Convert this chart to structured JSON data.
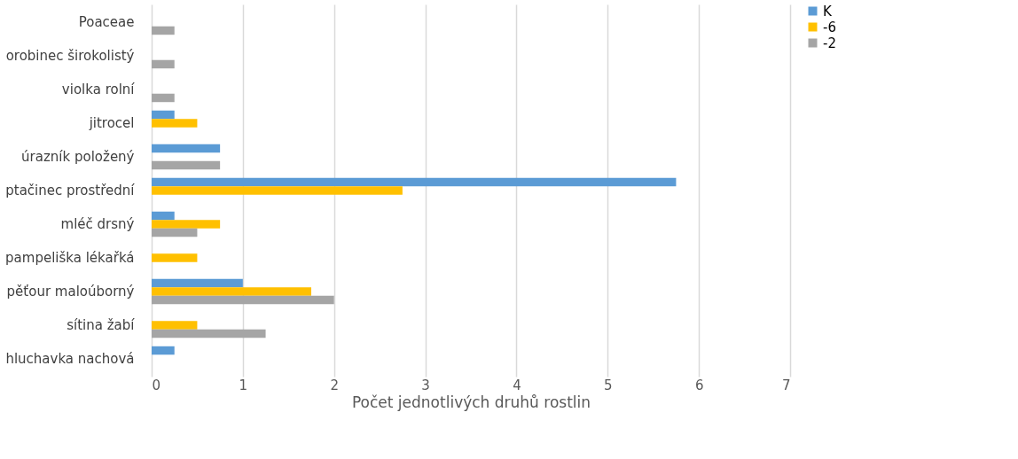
{
  "chart_data": {
    "type": "bar",
    "orientation": "horizontal",
    "xlabel": "Počet jednotlivých druhů rostlin",
    "categories": [
      "Poaceae",
      "orobinec širokolistý",
      "violka rolní",
      "jitrocel",
      "úrazník položený",
      "ptačinec prostřední",
      "mléč drsný",
      "pampeliška lékařká",
      "pěťour maloúborný",
      "sítina žabí",
      "hluchavka nachová"
    ],
    "series": [
      {
        "name": "K",
        "color": "#5b9bd5",
        "values": [
          null,
          null,
          null,
          0.25,
          0.75,
          5.75,
          0.25,
          null,
          1,
          null,
          0.25
        ]
      },
      {
        "name": "-6",
        "color": "#ffc000",
        "values": [
          null,
          null,
          null,
          0.5,
          null,
          2.75,
          0.75,
          0.5,
          1.75,
          0.5,
          null
        ]
      },
      {
        "name": "-2",
        "color": "#a5a5a5",
        "values": [
          0.25,
          0.25,
          0.25,
          null,
          0.75,
          null,
          0.5,
          null,
          2,
          1.25,
          null
        ]
      }
    ],
    "xlim": [
      0,
      7
    ],
    "xticks": [
      0,
      1,
      2,
      3,
      4,
      5,
      6,
      7
    ],
    "grid": "x",
    "legend": "right"
  }
}
